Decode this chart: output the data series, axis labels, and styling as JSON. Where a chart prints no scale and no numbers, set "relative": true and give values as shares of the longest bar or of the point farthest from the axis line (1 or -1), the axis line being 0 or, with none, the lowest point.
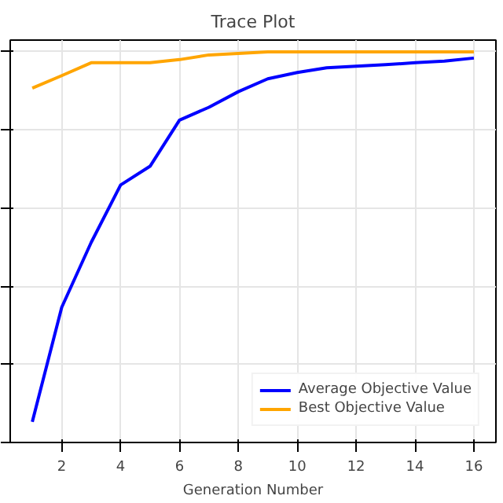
{
  "chart_data": {
    "type": "line",
    "title": "Trace Plot",
    "xlabel": "Generation Number",
    "relative": true,
    "x": [
      1,
      2,
      3,
      4,
      5,
      6,
      7,
      8,
      9,
      10,
      11,
      12,
      13,
      14,
      15,
      16
    ],
    "xlim": [
      0.25,
      16.75
    ],
    "xticks": [
      2,
      4,
      6,
      8,
      10,
      12,
      14,
      16
    ],
    "series": [
      {
        "name": "Average Objective Value",
        "color": "#0000ff",
        "values": [
          0.053,
          0.346,
          0.512,
          0.659,
          0.707,
          0.825,
          0.858,
          0.898,
          0.931,
          0.947,
          0.959,
          0.963,
          0.967,
          0.972,
          0.976,
          0.984
        ]
      },
      {
        "name": "Best Objective Value",
        "color": "#ffa500",
        "values": [
          0.907,
          0.939,
          0.972,
          0.972,
          0.972,
          0.98,
          0.992,
          0.996,
          1,
          1,
          1,
          1,
          1,
          1,
          1,
          1
        ]
      }
    ],
    "grid": true,
    "legend": "bottom right"
  }
}
